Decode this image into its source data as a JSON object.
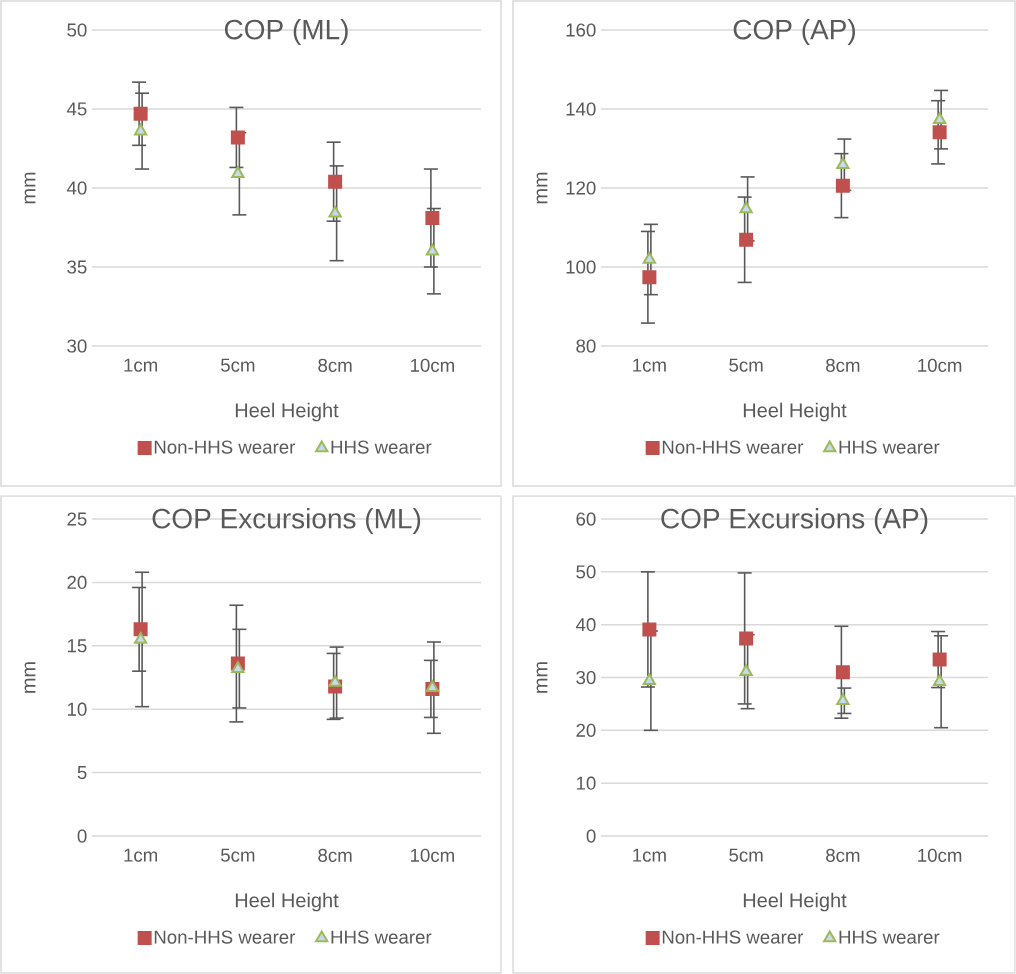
{
  "chart_data": [
    {
      "type": "scatter",
      "title": "COP (ML)",
      "xlabel": "Heel Height",
      "ylabel": "mm",
      "categories": [
        "1cm",
        "5cm",
        "8cm",
        "10cm"
      ],
      "ylim": [
        30,
        50
      ],
      "yticks": [
        30,
        35,
        40,
        45,
        50
      ],
      "grid": "y",
      "legend": "bottom",
      "series": [
        {
          "name": "Non-HHS wearer",
          "color": "#c0504d",
          "marker": "square",
          "values": [
            44.7,
            43.2,
            40.4,
            38.1
          ],
          "errors": [
            2.0,
            1.9,
            2.5,
            3.1
          ]
        },
        {
          "name": "HHS wearer",
          "color": "#9bbb59",
          "marker": "triangle",
          "values": [
            43.6,
            40.9,
            38.4,
            36.0
          ],
          "errors": [
            2.4,
            2.6,
            3.0,
            2.7
          ]
        }
      ]
    },
    {
      "type": "scatter",
      "title": "COP (AP)",
      "xlabel": "Heel Height",
      "ylabel": "mm",
      "categories": [
        "1cm",
        "5cm",
        "8cm",
        "10cm"
      ],
      "ylim": [
        80,
        160
      ],
      "yticks": [
        80,
        100,
        120,
        140,
        160
      ],
      "grid": "y",
      "legend": "bottom",
      "series": [
        {
          "name": "Non-HHS wearer",
          "color": "#c0504d",
          "marker": "square",
          "values": [
            97.4,
            106.9,
            120.6,
            134.1
          ],
          "errors": [
            11.6,
            10.8,
            8.1,
            8.0
          ]
        },
        {
          "name": "HHS wearer",
          "color": "#9bbb59",
          "marker": "triangle",
          "values": [
            101.9,
            114.7,
            125.9,
            137.3
          ],
          "errors": [
            8.9,
            8.1,
            6.5,
            7.4
          ]
        }
      ]
    },
    {
      "type": "scatter",
      "title": "COP Excursions (ML)",
      "xlabel": "Heel Height",
      "ylabel": "mm",
      "categories": [
        "1cm",
        "5cm",
        "8cm",
        "10cm"
      ],
      "ylim": [
        0,
        25
      ],
      "yticks": [
        0,
        5,
        10,
        15,
        20,
        25
      ],
      "grid": "y",
      "legend": "bottom",
      "series": [
        {
          "name": "Non-HHS wearer",
          "color": "#c0504d",
          "marker": "square",
          "values": [
            16.3,
            13.6,
            11.8,
            11.6
          ],
          "errors": [
            3.3,
            4.6,
            2.6,
            2.25
          ]
        },
        {
          "name": "HHS wearer",
          "color": "#9bbb59",
          "marker": "triangle",
          "values": [
            15.5,
            13.2,
            12.1,
            11.7
          ],
          "errors": [
            5.3,
            3.1,
            2.8,
            3.6
          ]
        }
      ]
    },
    {
      "type": "scatter",
      "title": "COP Excursions (AP)",
      "xlabel": "Heel Height",
      "ylabel": "mm",
      "categories": [
        "1cm",
        "5cm",
        "8cm",
        "10cm"
      ],
      "ylim": [
        0,
        60
      ],
      "yticks": [
        0,
        10,
        20,
        30,
        40,
        50,
        60
      ],
      "grid": "y",
      "legend": "bottom",
      "series": [
        {
          "name": "Non-HHS wearer",
          "color": "#c0504d",
          "marker": "square",
          "values": [
            39.1,
            37.4,
            31.0,
            33.4
          ],
          "errors": [
            10.9,
            12.4,
            8.7,
            5.3
          ]
        },
        {
          "name": "HHS wearer",
          "color": "#9bbb59",
          "marker": "triangle",
          "values": [
            29.4,
            31.1,
            25.6,
            29.2
          ],
          "errors": [
            9.4,
            7.0,
            2.4,
            8.7
          ]
        }
      ]
    }
  ]
}
